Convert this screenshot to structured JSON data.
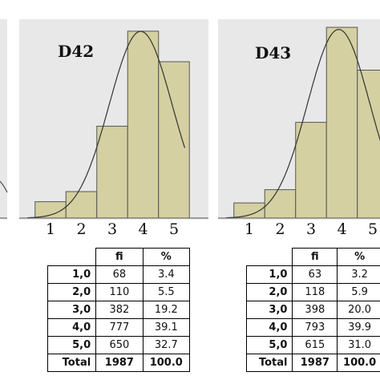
{
  "chart_data": [
    {
      "type": "bar",
      "title": "D42",
      "categories": [
        "1",
        "2",
        "3",
        "4",
        "5"
      ],
      "values": [
        68,
        110,
        382,
        777,
        650
      ],
      "percent": [
        3.4,
        5.5,
        19.2,
        39.1,
        32.7
      ],
      "total": 1987,
      "total_percent": 100.0,
      "curve": "normal",
      "xlabel": "",
      "ylabel": "",
      "bar_color": "#d4d0a1",
      "panel_color": "#e8e8e8"
    },
    {
      "type": "bar",
      "title": "D43",
      "categories": [
        "1",
        "2",
        "3",
        "4",
        "5"
      ],
      "values": [
        63,
        118,
        398,
        793,
        615
      ],
      "percent": [
        3.2,
        5.9,
        20.0,
        39.9,
        31.0
      ],
      "total": 1987,
      "total_percent": 100.0,
      "curve": "normal",
      "xlabel": "",
      "ylabel": "",
      "bar_color": "#d4d0a1",
      "panel_color": "#e8e8e8"
    }
  ],
  "tables": [
    {
      "headers": [
        "",
        "fi",
        "%"
      ],
      "rows": [
        {
          "cls": "1,0",
          "fi": "68",
          "pct": "3.4"
        },
        {
          "cls": "2,0",
          "fi": "110",
          "pct": "5.5"
        },
        {
          "cls": "3,0",
          "fi": "382",
          "pct": "19.2"
        },
        {
          "cls": "4,0",
          "fi": "777",
          "pct": "39.1"
        },
        {
          "cls": "5,0",
          "fi": "650",
          "pct": "32.7"
        },
        {
          "cls": "Total",
          "fi": "1987",
          "pct": "100.0"
        }
      ]
    },
    {
      "headers": [
        "",
        "fi",
        "%"
      ],
      "rows": [
        {
          "cls": "1,0",
          "fi": "63",
          "pct": "3.2"
        },
        {
          "cls": "2,0",
          "fi": "118",
          "pct": "5.9"
        },
        {
          "cls": "3,0",
          "fi": "398",
          "pct": "20.0"
        },
        {
          "cls": "4,0",
          "fi": "793",
          "pct": "39.9"
        },
        {
          "cls": "5,0",
          "fi": "615",
          "pct": "31.0"
        },
        {
          "cls": "Total",
          "fi": "1987",
          "pct": "100.0"
        }
      ]
    }
  ]
}
